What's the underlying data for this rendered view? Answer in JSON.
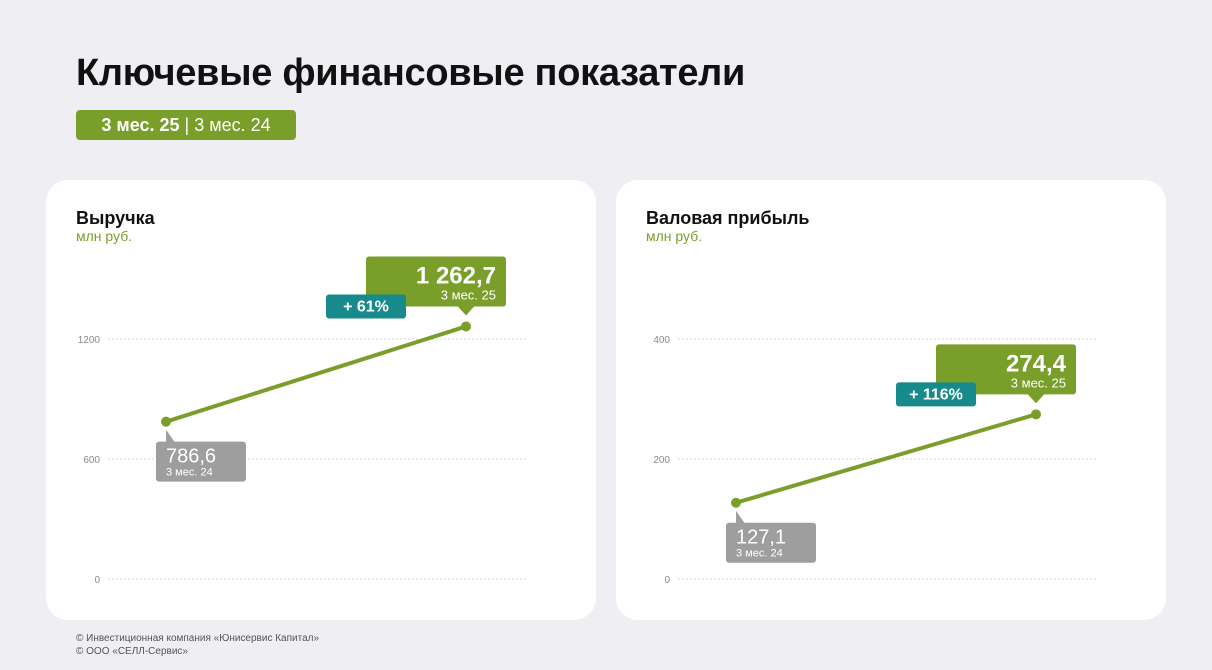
{
  "page": {
    "title": "Ключевые финансовые показатели",
    "period_current": "3 мес. 25",
    "period_separator": "|",
    "period_previous": "3 мес. 24"
  },
  "colors": {
    "green": "#7a9e2a",
    "teal": "#178b8b",
    "gray": "#9e9e9e",
    "background": "#eeeef3"
  },
  "chart_data": [
    {
      "type": "line",
      "title": "Выручка",
      "ylabel": "млн руб.",
      "categories": [
        "3 мес. 24",
        "3 мес. 25"
      ],
      "values": [
        786.6,
        1262.7
      ],
      "value_labels": [
        "786,6",
        "1 262,7"
      ],
      "change_label": "+ 61%",
      "yticks": [
        0,
        600,
        1200
      ],
      "ytick_labels": [
        "0",
        "600",
        "1200"
      ],
      "ylim": [
        0,
        1200
      ],
      "grid": true
    },
    {
      "type": "line",
      "title": "Валовая прибыль",
      "ylabel": "млн руб.",
      "categories": [
        "3 мес. 24",
        "3 мес. 25"
      ],
      "values": [
        127.1,
        274.4
      ],
      "value_labels": [
        "127,1",
        "274,4"
      ],
      "change_label": "+ 116%",
      "yticks": [
        0,
        200,
        400
      ],
      "ytick_labels": [
        "0",
        "200",
        "400"
      ],
      "ylim": [
        0,
        400
      ],
      "grid": true
    }
  ],
  "footer": {
    "line1": "© Инвестиционная компания «Юнисервис Капитал»",
    "line2": "© ООО «СЕЛЛ-Сервис»"
  }
}
